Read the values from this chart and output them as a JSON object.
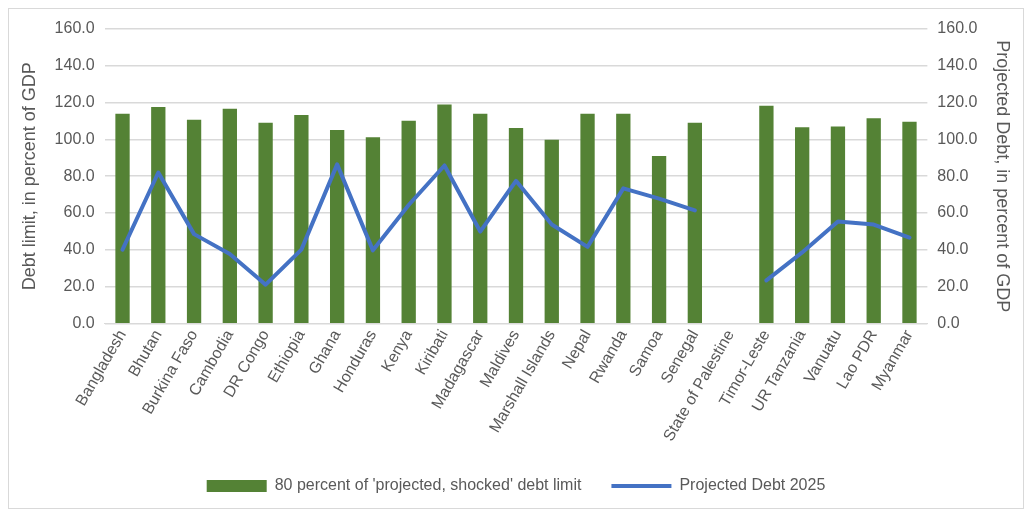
{
  "chart_data": {
    "type": "bar",
    "xlabel": null,
    "ylabel": "Debt limit, in percent of GDP",
    "y2label": "Projected Debt, in percent of GDP",
    "categories": [
      "Bangladesh",
      "Bhutan",
      "Burkina Faso",
      "Cambodia",
      "DR Congo",
      "Ethiopia",
      "Ghana",
      "Honduras",
      "Kenya",
      "Kiribati",
      "Madagascar",
      "Maldives",
      "Marshall Islands",
      "Nepal",
      "Rwanda",
      "Samoa",
      "Senegal",
      "State of Palestine",
      "Timor-Leste",
      "UR Tanzania",
      "Vanuatu",
      "Lao PDR",
      "Myanmar"
    ],
    "series": [
      {
        "name": "80 percent of 'projected, shocked' debt limit",
        "color": "#548235",
        "values": [
          113.8,
          117.5,
          110.6,
          116.6,
          109,
          113.2,
          105,
          101.1,
          110,
          118.8,
          113.8,
          106.1,
          99.8,
          113.8,
          113.8,
          90.9,
          109,
          null,
          118.2,
          106.5,
          106.9,
          111.4,
          109.5
        ]
      },
      {
        "name": "Projected Debt 2025",
        "type": "line",
        "axis": "y2",
        "color": "#4472c4",
        "values": [
          40.2,
          82,
          48.6,
          37.8,
          21.2,
          40.2,
          86.4,
          39.8,
          64.4,
          85.8,
          50,
          77.5,
          53.8,
          41.7,
          73.4,
          67.8,
          61.5,
          null,
          23.5,
          38.7,
          55.5,
          53.8,
          46.7
        ]
      }
    ],
    "ylim": [
      0,
      160
    ],
    "yticks": [
      {
        "value": 0,
        "label": "0.0"
      },
      {
        "value": 20,
        "label": "20.0"
      },
      {
        "value": 40,
        "label": "40.0"
      },
      {
        "value": 60,
        "label": "60.0"
      },
      {
        "value": 80,
        "label": "80.0"
      },
      {
        "value": 100,
        "label": "100.0"
      },
      {
        "value": 120,
        "label": "120.0"
      },
      {
        "value": 140,
        "label": "140.0"
      },
      {
        "value": 160,
        "label": "160.0"
      }
    ],
    "y2lim": [
      0,
      160
    ],
    "y2ticks": [
      {
        "value": 0,
        "label": "0.0"
      },
      {
        "value": 20,
        "label": "20.0"
      },
      {
        "value": 40,
        "label": "40.0"
      },
      {
        "value": 60,
        "label": "60.0"
      },
      {
        "value": 80,
        "label": "80.0"
      },
      {
        "value": 100,
        "label": "100.0"
      },
      {
        "value": 120,
        "label": "120.0"
      },
      {
        "value": 140,
        "label": "140.0"
      },
      {
        "value": 160,
        "label": "160.0"
      }
    ],
    "grid": "y",
    "legend": "bottom",
    "marker": "none",
    "line_style": "solid"
  }
}
